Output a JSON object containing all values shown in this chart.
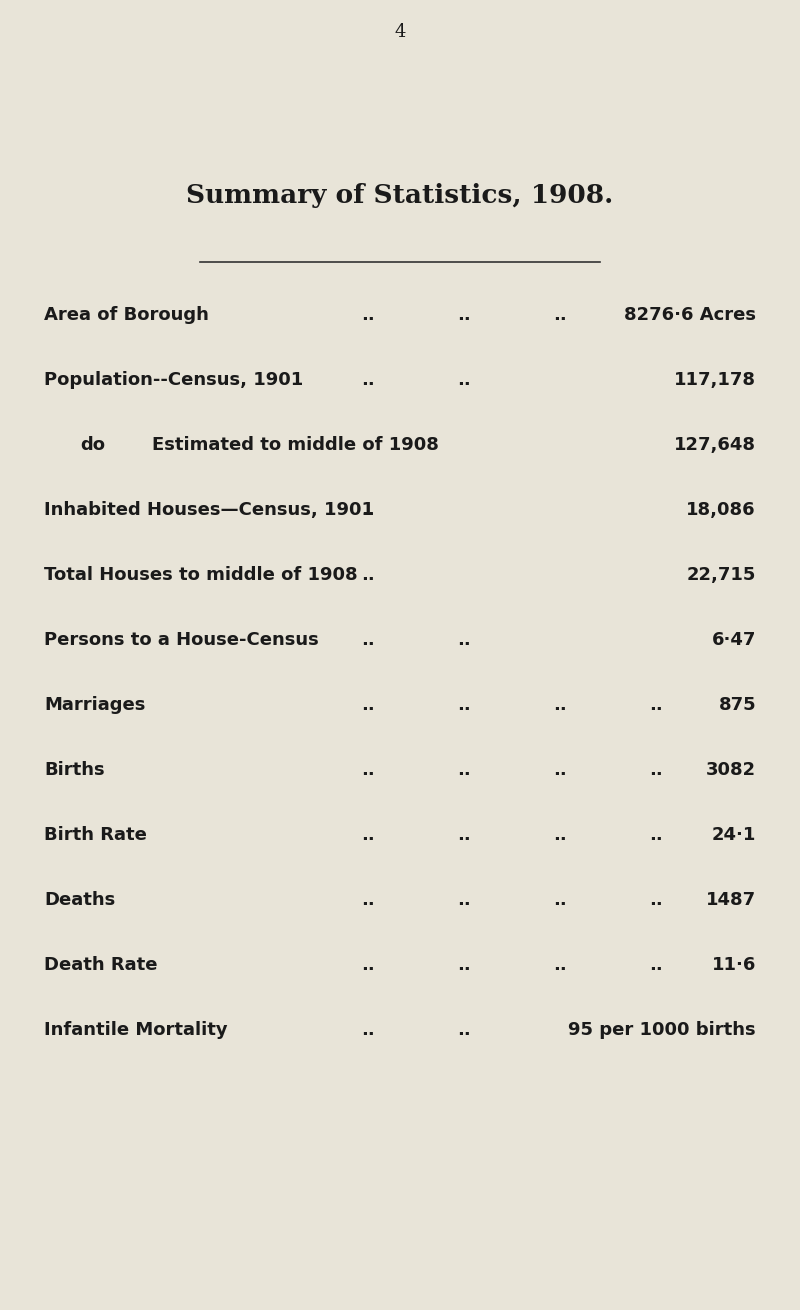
{
  "page_number": "4",
  "title": "Summary of Statistics, 1908.",
  "background_color": "#e8e4d8",
  "title_color": "#1a1a1a",
  "text_color": "#1a1a1a",
  "rows": [
    {
      "label": "Area of Borough",
      "dots": [
        "..",
        "..",
        ".."
      ],
      "value": "8276·6 Acres",
      "indent": false,
      "sublabel": ""
    },
    {
      "label": "Population--Census, 1901",
      "dots": [
        "..",
        ".."
      ],
      "value": "117,178",
      "indent": false,
      "sublabel": ""
    },
    {
      "label": "do",
      "dots": [],
      "value": "127,648",
      "indent": true,
      "sublabel": "Estimated to middle of 1908"
    },
    {
      "label": "Inhabited Houses—Census, 1901",
      "dots": [
        ".."
      ],
      "value": "18,086",
      "indent": false,
      "sublabel": ""
    },
    {
      "label": "Total Houses to middle of 1908",
      "dots": [
        ".."
      ],
      "value": "22,715",
      "indent": false,
      "sublabel": ""
    },
    {
      "label": "Persons to a House-Census",
      "dots": [
        "..",
        ".."
      ],
      "value": "6·47",
      "indent": false,
      "sublabel": ""
    },
    {
      "label": "Marriages",
      "dots": [
        "..",
        "..",
        "..",
        ".."
      ],
      "value": "875",
      "indent": false,
      "sublabel": ""
    },
    {
      "label": "Births",
      "dots": [
        "..",
        "..",
        "..",
        ".."
      ],
      "value": "3082",
      "indent": false,
      "sublabel": ""
    },
    {
      "label": "Birth Rate",
      "dots": [
        "..",
        "..",
        "..",
        ".."
      ],
      "value": "24·1",
      "indent": false,
      "sublabel": ""
    },
    {
      "label": "Deaths",
      "dots": [
        "..",
        "..",
        "..",
        ".."
      ],
      "value": "1487",
      "indent": false,
      "sublabel": ""
    },
    {
      "label": "Death Rate",
      "dots": [
        "..",
        "..",
        "..",
        ".."
      ],
      "value": "11·6",
      "indent": false,
      "sublabel": ""
    },
    {
      "label": "Infantile Mortality",
      "dots": [
        "..",
        ".."
      ],
      "value": "95 per 1000 births",
      "indent": false,
      "sublabel": ""
    }
  ],
  "figsize": [
    8.0,
    13.1
  ],
  "dpi": 100
}
